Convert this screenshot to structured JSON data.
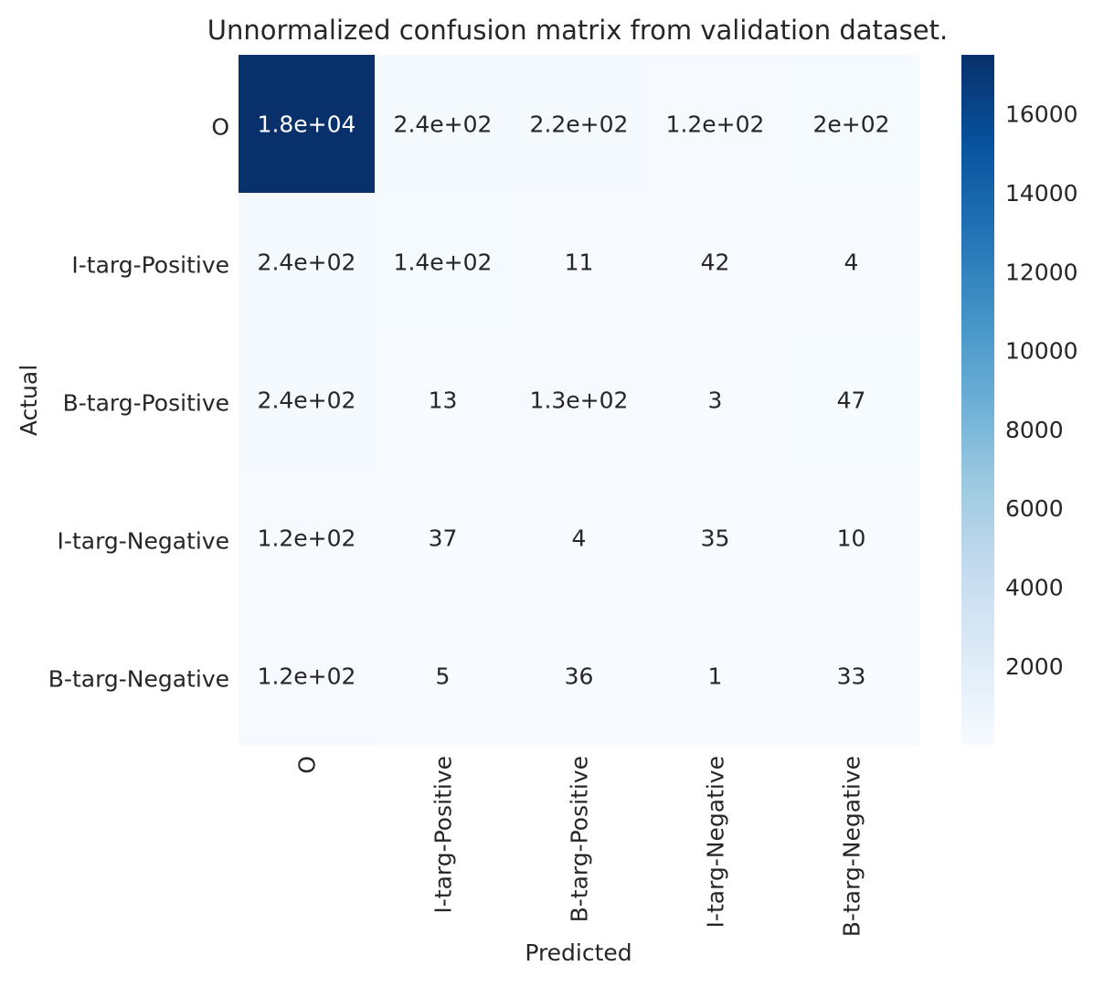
{
  "chart_data": {
    "type": "heatmap",
    "title": "Unnormalized confusion matrix from validation dataset.",
    "xlabel": "Predicted",
    "ylabel": "Actual",
    "row_labels": [
      "O",
      "I-targ-Positive",
      "B-targ-Positive",
      "I-targ-Negative",
      "B-targ-Negative"
    ],
    "col_labels": [
      "O",
      "I-targ-Positive",
      "B-targ-Positive",
      "I-targ-Negative",
      "B-targ-Negative"
    ],
    "values": [
      [
        18000,
        240,
        220,
        120,
        200
      ],
      [
        240,
        140,
        11,
        42,
        4
      ],
      [
        240,
        13,
        130,
        3,
        47
      ],
      [
        120,
        37,
        4,
        35,
        10
      ],
      [
        120,
        5,
        36,
        1,
        33
      ]
    ],
    "cell_labels": [
      [
        "1.8e+04",
        "2.4e+02",
        "2.2e+02",
        "1.2e+02",
        "2e+02"
      ],
      [
        "2.4e+02",
        "1.4e+02",
        "11",
        "42",
        "4"
      ],
      [
        "2.4e+02",
        "13",
        "1.3e+02",
        "3",
        "47"
      ],
      [
        "1.2e+02",
        "37",
        "4",
        "35",
        "10"
      ],
      [
        "1.2e+02",
        "5",
        "36",
        "1",
        "33"
      ]
    ],
    "colorbar": {
      "ticks": [
        2000,
        4000,
        6000,
        8000,
        10000,
        12000,
        14000,
        16000
      ],
      "vmin": 1,
      "vmax": 17500,
      "cmap": "Blues"
    },
    "grid": false
  }
}
